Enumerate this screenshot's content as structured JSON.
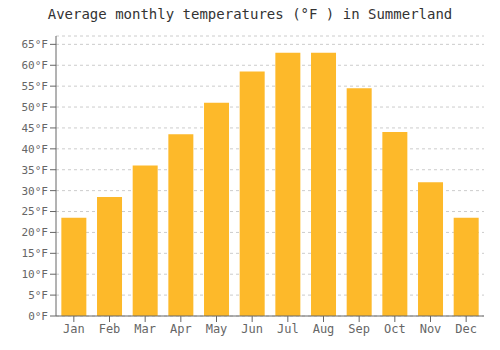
{
  "chart_data": {
    "type": "bar",
    "title": "Average monthly temperatures (°F ) in Summerland",
    "categories": [
      "Jan",
      "Feb",
      "Mar",
      "Apr",
      "May",
      "Jun",
      "Jul",
      "Aug",
      "Sep",
      "Oct",
      "Nov",
      "Dec"
    ],
    "values": [
      23.5,
      28.5,
      36.0,
      43.5,
      51.0,
      58.5,
      63.0,
      63.0,
      54.5,
      44.0,
      32.0,
      23.5
    ],
    "color": "#FDB92A",
    "ylim": [
      0,
      67
    ],
    "yticks": [
      {
        "value": 0,
        "label": "0°F"
      },
      {
        "value": 5,
        "label": "5°F"
      },
      {
        "value": 10,
        "label": "10°F"
      },
      {
        "value": 15,
        "label": "15°F"
      },
      {
        "value": 20,
        "label": "20°F"
      },
      {
        "value": 25,
        "label": "25°F"
      },
      {
        "value": 30,
        "label": "30°F"
      },
      {
        "value": 35,
        "label": "35°F"
      },
      {
        "value": 40,
        "label": "40°F"
      },
      {
        "value": 45,
        "label": "45°F"
      },
      {
        "value": 50,
        "label": "50°F"
      },
      {
        "value": 55,
        "label": "55°F"
      },
      {
        "value": 60,
        "label": "60°F"
      },
      {
        "value": 65,
        "label": "65°F"
      }
    ],
    "grid": true
  }
}
